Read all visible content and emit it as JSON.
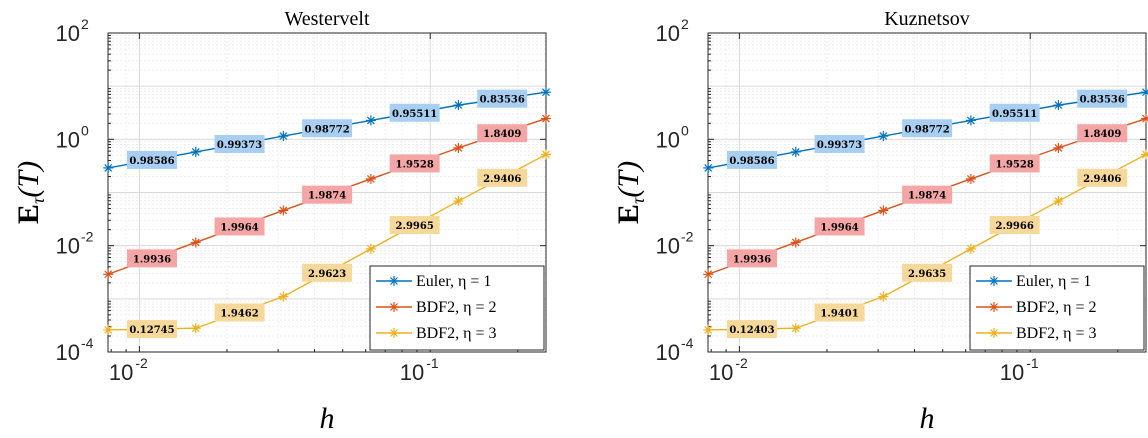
{
  "chart_data": [
    {
      "type": "line",
      "title": "Westervelt",
      "xlabel": "h",
      "ylabel": "E_τ(T)",
      "xscale": "log",
      "yscale": "log",
      "xlim": [
        0.0078,
        0.25
      ],
      "ylim": [
        0.0001,
        100
      ],
      "xticks": [
        "10^-2",
        "10^-1"
      ],
      "yticks": [
        "10^-4",
        "10^-2",
        "10^0",
        "10^2"
      ],
      "grid": true,
      "legend_position": "bottom-right",
      "x": [
        0.0078125,
        0.015625,
        0.03125,
        0.0625,
        0.125,
        0.25
      ],
      "series": [
        {
          "name": "Euler, η = 1",
          "color": "#0072BD",
          "values": [
            0.29,
            0.58,
            1.15,
            2.27,
            4.4,
            7.7
          ],
          "rates": [
            "0.98586",
            "0.99373",
            "0.98772",
            "0.95511",
            "0.83536"
          ]
        },
        {
          "name": "BDF2, η = 2",
          "color": "#D95319",
          "values": [
            0.0029,
            0.0115,
            0.046,
            0.18,
            0.69,
            2.46
          ],
          "rates": [
            "1.9936",
            "1.9964",
            "1.9874",
            "1.9528",
            "1.8409"
          ]
        },
        {
          "name": "BDF2, η = 3",
          "color": "#EDB120",
          "values": [
            0.00026,
            0.00028,
            0.0011,
            0.0087,
            0.069,
            0.52
          ],
          "rates": [
            "0.12745",
            "1.9462",
            "2.9623",
            "2.9965",
            "2.9406"
          ]
        }
      ]
    },
    {
      "type": "line",
      "title": "Kuznetsov",
      "xlabel": "h",
      "ylabel": "E_τ(T)",
      "xscale": "log",
      "yscale": "log",
      "xlim": [
        0.0078,
        0.25
      ],
      "ylim": [
        0.0001,
        100
      ],
      "xticks": [
        "10^-2",
        "10^-1"
      ],
      "yticks": [
        "10^-4",
        "10^-2",
        "10^0",
        "10^2"
      ],
      "grid": true,
      "legend_position": "bottom-right",
      "x": [
        0.0078125,
        0.015625,
        0.03125,
        0.0625,
        0.125,
        0.25
      ],
      "series": [
        {
          "name": "Euler, η = 1",
          "color": "#0072BD",
          "values": [
            0.29,
            0.58,
            1.15,
            2.27,
            4.4,
            7.7
          ],
          "rates": [
            "0.98586",
            "0.99373",
            "0.98772",
            "0.95511",
            "0.83536"
          ]
        },
        {
          "name": "BDF2, η = 2",
          "color": "#D95319",
          "values": [
            0.0029,
            0.0115,
            0.046,
            0.18,
            0.69,
            2.46
          ],
          "rates": [
            "1.9936",
            "1.9964",
            "1.9874",
            "1.9528",
            "1.8409"
          ]
        },
        {
          "name": "BDF2, η = 3",
          "color": "#EDB120",
          "values": [
            0.00026,
            0.00028,
            0.0011,
            0.0087,
            0.069,
            0.52
          ],
          "rates": [
            "0.12403",
            "1.9401",
            "2.9635",
            "2.9966",
            "2.9406"
          ]
        }
      ]
    }
  ],
  "annotation_colors": [
    "#A8CFF2",
    "#F4A6A6",
    "#F6D99A"
  ]
}
